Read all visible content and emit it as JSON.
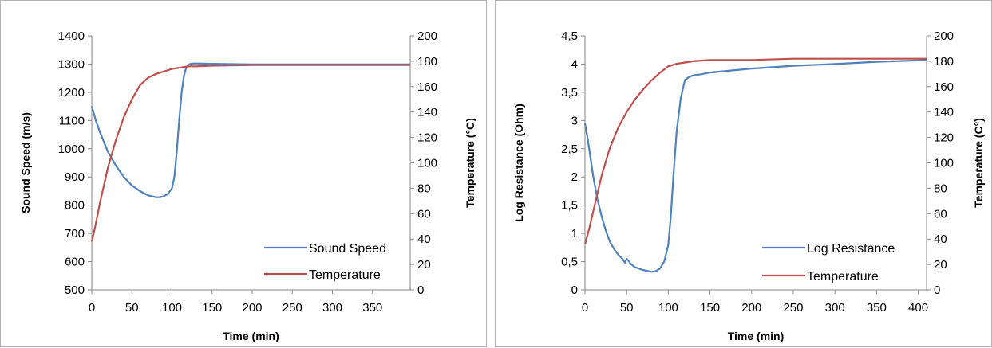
{
  "chart_data": [
    {
      "type": "line",
      "xlabel": "Time (min)",
      "ylabel": "Sound Speed (m/s)",
      "y2label": "Temperature (°C)",
      "xlim": [
        0,
        397
      ],
      "ylim": [
        500,
        1400
      ],
      "y2lim": [
        0,
        200
      ],
      "xticks": [
        "0",
        "50",
        "100",
        "150",
        "200",
        "250",
        "300",
        "350"
      ],
      "yticks": [
        "500",
        "600",
        "700",
        "800",
        "900",
        "1000",
        "1100",
        "1200",
        "1300",
        "1400"
      ],
      "y2ticks": [
        "0",
        "20",
        "40",
        "60",
        "80",
        "100",
        "120",
        "140",
        "160",
        "180",
        "200"
      ],
      "legend_position": "bottom-right",
      "grid": false,
      "series": [
        {
          "name": "Sound Speed",
          "axis": "left",
          "color": "#4f81bd",
          "x": [
            0,
            5,
            10,
            20,
            30,
            40,
            50,
            60,
            70,
            80,
            85,
            90,
            95,
            100,
            103,
            106,
            109,
            112,
            115,
            118,
            122,
            126,
            130,
            150,
            200,
            250,
            300,
            350,
            397
          ],
          "y": [
            1150,
            1100,
            1060,
            990,
            940,
            900,
            870,
            850,
            835,
            828,
            828,
            832,
            840,
            860,
            900,
            990,
            1100,
            1200,
            1260,
            1290,
            1300,
            1302,
            1302,
            1301,
            1299,
            1299,
            1299,
            1299,
            1299
          ]
        },
        {
          "name": "Temperature",
          "axis": "right",
          "color": "#c0504d",
          "x": [
            0,
            5,
            10,
            20,
            30,
            40,
            50,
            60,
            70,
            80,
            90,
            100,
            110,
            120,
            130,
            150,
            200,
            250,
            300,
            350,
            397
          ],
          "y": [
            38,
            52,
            68,
            96,
            118,
            136,
            150,
            161,
            167,
            170,
            172,
            174,
            175,
            176,
            176,
            176.5,
            177,
            177,
            177,
            177,
            177
          ]
        }
      ]
    },
    {
      "type": "line",
      "xlabel": "Time (min)",
      "ylabel": "Log Resistance (Ohm)",
      "y2label": "Temperature (C°)",
      "xlim": [
        0,
        410
      ],
      "ylim": [
        0,
        4.5
      ],
      "y2lim": [
        0,
        200
      ],
      "xticks": [
        "0",
        "50",
        "100",
        "150",
        "200",
        "250",
        "300",
        "350",
        "400"
      ],
      "yticks": [
        "0",
        "0,5",
        "1",
        "1,5",
        "2",
        "2,5",
        "3",
        "3,5",
        "4",
        "4,5"
      ],
      "y2ticks": [
        "0",
        "20",
        "40",
        "60",
        "80",
        "100",
        "120",
        "140",
        "160",
        "180",
        "200"
      ],
      "legend_position": "bottom-right",
      "grid": false,
      "series": [
        {
          "name": "Log Resistance",
          "axis": "left",
          "color": "#4f81bd",
          "x": [
            0,
            3,
            6,
            10,
            15,
            20,
            25,
            30,
            35,
            40,
            45,
            48,
            50,
            52,
            55,
            60,
            70,
            80,
            85,
            90,
            95,
            100,
            103,
            106,
            110,
            115,
            120,
            125,
            130,
            140,
            150,
            200,
            250,
            300,
            350,
            410
          ],
          "y": [
            2.95,
            2.7,
            2.4,
            2.0,
            1.6,
            1.3,
            1.05,
            0.85,
            0.72,
            0.62,
            0.55,
            0.48,
            0.55,
            0.52,
            0.46,
            0.4,
            0.35,
            0.32,
            0.33,
            0.38,
            0.5,
            0.8,
            1.3,
            2.0,
            2.8,
            3.4,
            3.72,
            3.77,
            3.8,
            3.82,
            3.85,
            3.92,
            3.97,
            4.0,
            4.04,
            4.07
          ]
        },
        {
          "name": "Temperature",
          "axis": "right",
          "color": "#c0504d",
          "x": [
            0,
            5,
            10,
            20,
            30,
            40,
            50,
            60,
            70,
            80,
            90,
            100,
            110,
            120,
            130,
            150,
            200,
            250,
            300,
            350,
            410
          ],
          "y": [
            36,
            48,
            62,
            90,
            112,
            128,
            140,
            150,
            158,
            165,
            171,
            176,
            178,
            179,
            180,
            181,
            181,
            182,
            182,
            182,
            182
          ]
        }
      ]
    }
  ]
}
